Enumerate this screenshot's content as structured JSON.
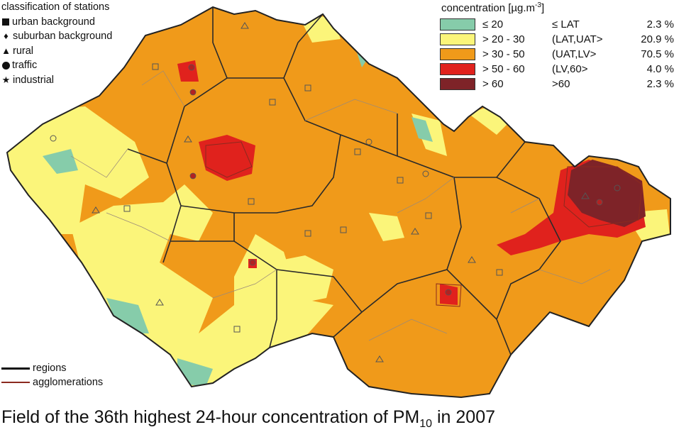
{
  "stations_legend": {
    "title": "classification of stations",
    "items": [
      {
        "symbol": "square-icon",
        "label": "urban background"
      },
      {
        "symbol": "diamond-icon",
        "label": "suburban background"
      },
      {
        "symbol": "triangle-icon",
        "label": "rural"
      },
      {
        "symbol": "circle-icon",
        "label": "traffic"
      },
      {
        "symbol": "star-icon",
        "label": "industrial"
      }
    ]
  },
  "concentration_legend": {
    "title_prefix": "concentration [µg.m",
    "title_exp": "-3",
    "title_suffix": "]",
    "items": [
      {
        "range": "≤ 20",
        "class": "≤ LAT",
        "percent": "2.3 %",
        "color": "#86ccaa"
      },
      {
        "range": "> 20 - 30",
        "class": "(LAT,UAT>",
        "percent": "20.9 %",
        "color": "#fbf57a"
      },
      {
        "range": "> 30 - 50",
        "class": "(UAT,LV>",
        "percent": "70.5 %",
        "color": "#f09a1a"
      },
      {
        "range": "> 50 - 60",
        "class": "(LV,60>",
        "percent": "4.0 %",
        "color": "#e0221d"
      },
      {
        "range": "> 60",
        "class": ">60",
        "percent": "2.3 %",
        "color": "#7e2328"
      }
    ]
  },
  "line_legend": {
    "regions": "regions",
    "agglomerations": "agglomerations"
  },
  "caption": {
    "prefix": "Field of the 36th highest 24-hour concentration of PM",
    "sub": "10",
    "suffix": " in 2007"
  }
}
